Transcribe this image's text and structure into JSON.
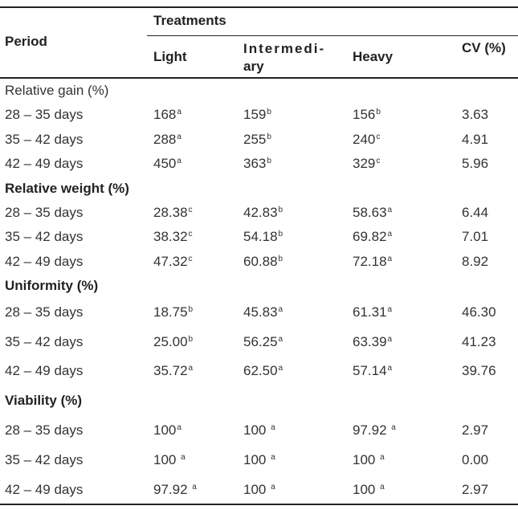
{
  "header": {
    "period": "Period",
    "treatments": "Treatments",
    "light": "Light",
    "intermediary_1": "Intermedi-",
    "intermediary_2": "ary",
    "heavy": "Heavy",
    "cv": "CV (%)"
  },
  "rows": [
    {
      "label": "Relative gain (%)",
      "section": true,
      "bold": false,
      "h": 31
    },
    {
      "label": "28 – 35 days",
      "cells": [
        {
          "v": "168",
          "s": "a"
        },
        {
          "v": "159",
          "s": "b"
        },
        {
          "v": "156",
          "s": "b"
        },
        {
          "v": "3.63",
          "s": ""
        }
      ],
      "h": 30
    },
    {
      "label": "35 – 42 days",
      "cells": [
        {
          "v": "288",
          "s": "a"
        },
        {
          "v": "255",
          "s": "b"
        },
        {
          "v": "240",
          "s": "c"
        },
        {
          "v": "4.91",
          "s": ""
        }
      ],
      "h": 31
    },
    {
      "label": "42 – 49 days",
      "cells": [
        {
          "v": "450",
          "s": "a"
        },
        {
          "v": "363",
          "s": "b"
        },
        {
          "v": "329",
          "s": "c"
        },
        {
          "v": "5.96",
          "s": ""
        }
      ],
      "h": 30
    },
    {
      "label": "Relative weight (%)",
      "section": true,
      "bold": true,
      "h": 31
    },
    {
      "label": "28 – 35 days",
      "cells": [
        {
          "v": "28.38",
          "s": "c"
        },
        {
          "v": "42.83",
          "s": "b"
        },
        {
          "v": "58.63",
          "s": "a"
        },
        {
          "v": "6.44",
          "s": ""
        }
      ],
      "h": 30
    },
    {
      "label": "35 – 42 days",
      "cells": [
        {
          "v": "38.32",
          "s": "c"
        },
        {
          "v": "54.18",
          "s": "b"
        },
        {
          "v": "69.82",
          "s": "a"
        },
        {
          "v": "7.01",
          "s": ""
        }
      ],
      "h": 30
    },
    {
      "label": "42 – 49 days",
      "cells": [
        {
          "v": "47.32",
          "s": "c"
        },
        {
          "v": "60.88",
          "s": "b"
        },
        {
          "v": "72.18",
          "s": "a"
        },
        {
          "v": "8.92",
          "s": ""
        }
      ],
      "h": 31
    },
    {
      "label": "Uniformity (%)",
      "section": true,
      "bold": true,
      "h": 30
    },
    {
      "label": "28 – 35 days",
      "cells": [
        {
          "v": "18.75",
          "s": "b"
        },
        {
          "v": "45.83",
          "s": "a"
        },
        {
          "v": "61.31",
          "s": "a"
        },
        {
          "v": "46.30",
          "s": ""
        }
      ],
      "h": 36
    },
    {
      "label": "35 – 42 days",
      "cells": [
        {
          "v": "25.00",
          "s": "b"
        },
        {
          "v": "56.25",
          "s": "a"
        },
        {
          "v": "63.39",
          "s": "a"
        },
        {
          "v": "41.23",
          "s": ""
        }
      ],
      "h": 37
    },
    {
      "label": "42 – 49 days",
      "cells": [
        {
          "v": "35.72",
          "s": "a"
        },
        {
          "v": "62.50",
          "s": "a"
        },
        {
          "v": "57.14",
          "s": "a"
        },
        {
          "v": "39.76",
          "s": ""
        }
      ],
      "h": 36
    },
    {
      "label": "Viability (%)",
      "section": true,
      "bold": true,
      "h": 37
    },
    {
      "label": "28 – 35 days",
      "cells": [
        {
          "v": "100",
          "s": "a"
        },
        {
          "v": "100 ",
          "s": "a"
        },
        {
          "v": "97.92 ",
          "s": "a"
        },
        {
          "v": "2.97",
          "s": ""
        }
      ],
      "h": 37
    },
    {
      "label": "35 – 42 days",
      "cells": [
        {
          "v": "100 ",
          "s": "a"
        },
        {
          "v": "100 ",
          "s": "a"
        },
        {
          "v": "100 ",
          "s": "a"
        },
        {
          "v": "0.00",
          "s": ""
        }
      ],
      "h": 37
    },
    {
      "label": "42 – 49 days",
      "cells": [
        {
          "v": "97.92 ",
          "s": "a"
        },
        {
          "v": "100 ",
          "s": "a"
        },
        {
          "v": "100 ",
          "s": "a"
        },
        {
          "v": "2.97",
          "s": ""
        }
      ],
      "h": 37
    }
  ]
}
